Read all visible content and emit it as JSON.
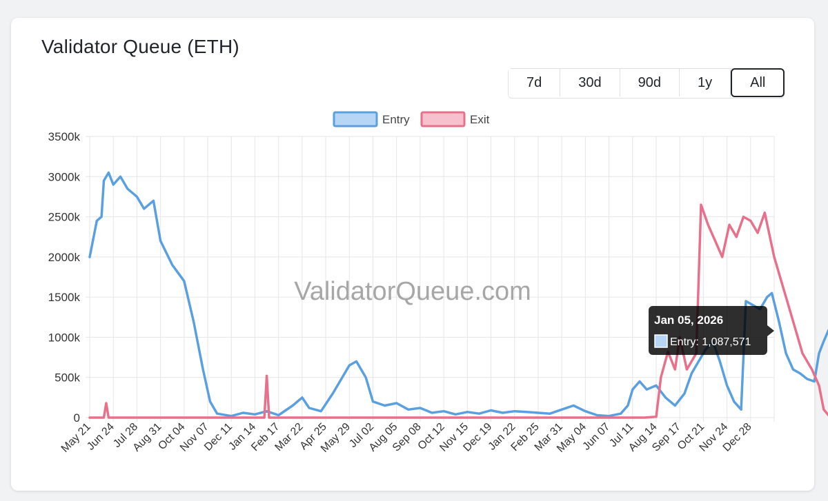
{
  "title": "Validator Queue (ETH)",
  "ranges": [
    {
      "label": "7d",
      "active": false
    },
    {
      "label": "30d",
      "active": false
    },
    {
      "label": "90d",
      "active": false
    },
    {
      "label": "1y",
      "active": false
    },
    {
      "label": "All",
      "active": true
    }
  ],
  "watermark": "ValidatorQueue.com",
  "tooltip": {
    "title": "Jan 05, 2026",
    "label": "Entry: 1,087,571"
  },
  "colors": {
    "entry": "#5a9fdf",
    "exit": "#e8708a",
    "grid": "#e6e6e6"
  },
  "chart_data": {
    "type": "line",
    "title": "Validator Queue (ETH)",
    "xlabel": "",
    "ylabel": "",
    "ylim": [
      0,
      3500000
    ],
    "y_ticks": [
      0,
      500000,
      1000000,
      1500000,
      2000000,
      2500000,
      3000000,
      3500000
    ],
    "y_tick_labels": [
      "0",
      "500k",
      "1000k",
      "1500k",
      "2000k",
      "2500k",
      "3000k",
      "3500k"
    ],
    "categories": [
      "May 21",
      "Jun 24",
      "Jul 28",
      "Aug 31",
      "Oct 04",
      "Nov 07",
      "Dec 11",
      "Jan 14",
      "Feb 17",
      "Mar 22",
      "Apr 25",
      "May 29",
      "Jul 02",
      "Aug 05",
      "Sep 08",
      "Oct 12",
      "Nov 15",
      "Dec 19",
      "Jan 22",
      "Feb 25",
      "Mar 31",
      "May 04",
      "Jun 07",
      "Jul 11",
      "Aug 14",
      "Sep 17",
      "Oct 21",
      "Nov 24",
      "Dec 28"
    ],
    "legend": [
      "Entry",
      "Exit"
    ],
    "legend_position": "top",
    "series": [
      {
        "name": "Entry",
        "color": "#5a9fdf",
        "points": [
          [
            0,
            2000000
          ],
          [
            0.3,
            2450000
          ],
          [
            0.5,
            2500000
          ],
          [
            0.6,
            2950000
          ],
          [
            0.8,
            3050000
          ],
          [
            1.0,
            2900000
          ],
          [
            1.3,
            3000000
          ],
          [
            1.6,
            2850000
          ],
          [
            2.0,
            2750000
          ],
          [
            2.3,
            2600000
          ],
          [
            2.7,
            2700000
          ],
          [
            3.0,
            2200000
          ],
          [
            3.5,
            1900000
          ],
          [
            4.0,
            1700000
          ],
          [
            4.4,
            1200000
          ],
          [
            4.8,
            600000
          ],
          [
            5.1,
            200000
          ],
          [
            5.4,
            50000
          ],
          [
            6.0,
            20000
          ],
          [
            6.5,
            60000
          ],
          [
            7.0,
            40000
          ],
          [
            7.5,
            80000
          ],
          [
            8.0,
            30000
          ],
          [
            8.6,
            150000
          ],
          [
            9.0,
            250000
          ],
          [
            9.3,
            120000
          ],
          [
            9.8,
            80000
          ],
          [
            10.3,
            300000
          ],
          [
            10.7,
            500000
          ],
          [
            11.0,
            650000
          ],
          [
            11.3,
            700000
          ],
          [
            11.7,
            500000
          ],
          [
            12.0,
            200000
          ],
          [
            12.5,
            150000
          ],
          [
            13.0,
            180000
          ],
          [
            13.5,
            100000
          ],
          [
            14.0,
            120000
          ],
          [
            14.5,
            60000
          ],
          [
            15.0,
            80000
          ],
          [
            15.5,
            40000
          ],
          [
            16.0,
            70000
          ],
          [
            16.5,
            50000
          ],
          [
            17.0,
            90000
          ],
          [
            17.5,
            60000
          ],
          [
            18.0,
            80000
          ],
          [
            18.5,
            70000
          ],
          [
            19.0,
            60000
          ],
          [
            19.5,
            50000
          ],
          [
            20.0,
            100000
          ],
          [
            20.5,
            150000
          ],
          [
            21.0,
            80000
          ],
          [
            21.5,
            30000
          ],
          [
            22.0,
            20000
          ],
          [
            22.5,
            50000
          ],
          [
            22.8,
            150000
          ],
          [
            23.0,
            350000
          ],
          [
            23.3,
            450000
          ],
          [
            23.6,
            350000
          ],
          [
            24.0,
            400000
          ],
          [
            24.4,
            250000
          ],
          [
            24.8,
            150000
          ],
          [
            25.2,
            300000
          ],
          [
            25.5,
            550000
          ],
          [
            25.8,
            700000
          ],
          [
            26.1,
            850000
          ],
          [
            26.4,
            950000
          ],
          [
            26.7,
            700000
          ],
          [
            27.0,
            400000
          ],
          [
            27.3,
            200000
          ],
          [
            27.6,
            100000
          ],
          [
            27.8,
            1450000
          ],
          [
            28.1,
            1400000
          ],
          [
            28.4,
            1350000
          ],
          [
            28.7,
            1500000
          ],
          [
            28.9,
            1550000
          ],
          [
            29.2,
            1200000
          ],
          [
            29.5,
            800000
          ],
          [
            29.8,
            600000
          ],
          [
            30.1,
            550000
          ],
          [
            30.4,
            480000
          ],
          [
            30.7,
            450000
          ],
          [
            30.9,
            800000
          ],
          [
            31.1,
            950000
          ],
          [
            31.3,
            1087571
          ]
        ]
      },
      {
        "name": "Exit",
        "color": "#e8708a",
        "points": [
          [
            0,
            0
          ],
          [
            0.6,
            0
          ],
          [
            0.7,
            180000
          ],
          [
            0.8,
            0
          ],
          [
            7.4,
            0
          ],
          [
            7.5,
            520000
          ],
          [
            7.6,
            0
          ],
          [
            15.0,
            0
          ],
          [
            23.5,
            0
          ],
          [
            24.0,
            10000
          ],
          [
            24.2,
            500000
          ],
          [
            24.5,
            820000
          ],
          [
            24.8,
            600000
          ],
          [
            25.0,
            1000000
          ],
          [
            25.3,
            600000
          ],
          [
            25.7,
            800000
          ],
          [
            25.9,
            2650000
          ],
          [
            26.2,
            2400000
          ],
          [
            26.5,
            2200000
          ],
          [
            26.8,
            2000000
          ],
          [
            27.1,
            2400000
          ],
          [
            27.4,
            2250000
          ],
          [
            27.7,
            2500000
          ],
          [
            28.0,
            2450000
          ],
          [
            28.3,
            2300000
          ],
          [
            28.6,
            2550000
          ],
          [
            29.0,
            2000000
          ],
          [
            29.4,
            1600000
          ],
          [
            29.8,
            1200000
          ],
          [
            30.2,
            800000
          ],
          [
            30.6,
            600000
          ],
          [
            30.9,
            400000
          ],
          [
            31.1,
            100000
          ],
          [
            31.3,
            30000
          ]
        ]
      }
    ]
  }
}
